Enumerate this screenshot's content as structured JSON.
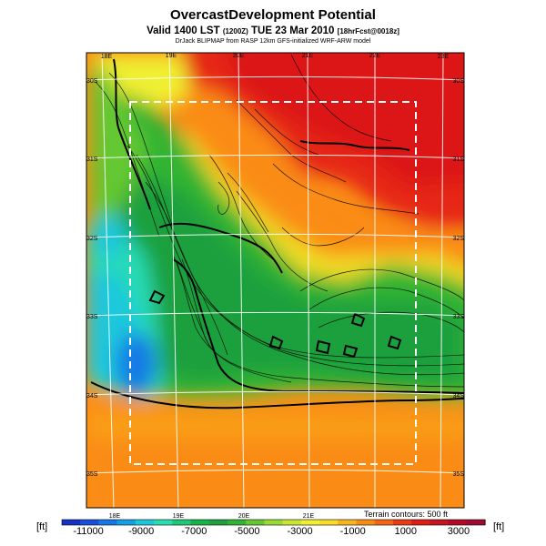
{
  "header": {
    "title": "OvercastDevelopment Potential",
    "valid_main": "Valid 1400 LST",
    "valid_small1": "(1200Z)",
    "valid_date": "TUE 23 Mar 2010",
    "valid_small2": "[18hrFcst@0018z]",
    "credit": "DrJack BLIPMAP from RASP 12km GFS-initialized WRF-ARW model"
  },
  "map": {
    "lon_top": [
      "18E",
      "19E",
      "20E",
      "21E",
      "22E",
      "23E"
    ],
    "lon_bottom": [
      "18E",
      "19E",
      "20E",
      "21E"
    ],
    "lat_left": [
      "30S",
      "31S",
      "32S",
      "33S",
      "34S",
      "35S"
    ],
    "lat_right": [
      "30S",
      "31S",
      "32S",
      "33S",
      "34S",
      "35S"
    ],
    "terrain_note": "Terrain contours: 500 ft"
  },
  "colorbar": {
    "unit_left": "[ft]",
    "unit_right": "[ft]",
    "ticks": [
      "-11000",
      "-9000",
      "-7000",
      "-5000",
      "-3000",
      "-1000",
      "1000",
      "3000"
    ],
    "range": [
      -12000,
      4000
    ],
    "colors": [
      "#1432c8",
      "#1450dc",
      "#1478e6",
      "#14a0e6",
      "#1ec8dc",
      "#28dcb4",
      "#1ec878",
      "#14b446",
      "#1ea03c",
      "#32b432",
      "#64c832",
      "#96dc32",
      "#c8e632",
      "#f0f032",
      "#fadc28",
      "#fab41e",
      "#fa8c14",
      "#f56414",
      "#eb3c14",
      "#dc1e14",
      "#c8141e",
      "#b40a28",
      "#a00a32"
    ]
  }
}
